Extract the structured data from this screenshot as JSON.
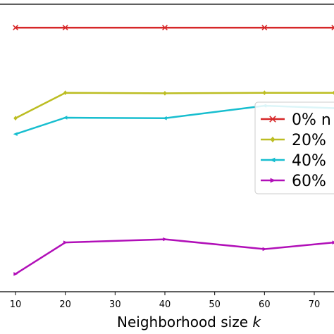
{
  "chart_data": {
    "type": "line",
    "xlabel": "Neighborhood size ",
    "xlabel_var": "k",
    "x_ticks": [
      10,
      20,
      30,
      40,
      50,
      60,
      70
    ],
    "xlim": [
      9,
      74
    ],
    "ylim": [
      0.0,
      1.0
    ],
    "grid": false,
    "legend_placement": "center-right",
    "series": [
      {
        "name": "0% n",
        "color": "#d62728",
        "marker": "x",
        "x": [
          10,
          20,
          40,
          60,
          74
        ],
        "y": [
          0.965,
          0.965,
          0.965,
          0.965,
          0.965
        ]
      },
      {
        "name": "20%",
        "color": "#bcbd22",
        "marker": "diamond",
        "x": [
          10,
          20,
          40,
          60,
          74
        ],
        "y": [
          0.623,
          0.719,
          0.717,
          0.719,
          0.719
        ]
      },
      {
        "name": "40%",
        "color": "#17becf",
        "marker": "left-triangle",
        "x": [
          10,
          20,
          40,
          60,
          74
        ],
        "y": [
          0.563,
          0.625,
          0.623,
          0.67,
          0.661
        ]
      },
      {
        "name": "60%",
        "color": "#b10fb8",
        "marker": "right-triangle",
        "x": [
          10,
          20,
          40,
          60,
          74
        ],
        "y": [
          0.035,
          0.154,
          0.166,
          0.129,
          0.154
        ]
      }
    ]
  }
}
